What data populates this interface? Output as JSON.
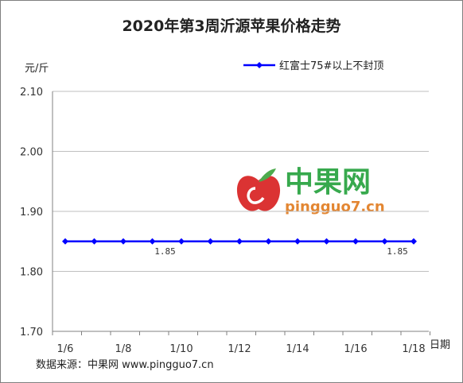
{
  "chart_data": {
    "type": "line",
    "title": "2020年第3周沂源苹果价格走势",
    "ylabel": "元/斤",
    "xlabel": "日期",
    "ylim": [
      1.7,
      2.1
    ],
    "yticks": [
      "1.70",
      "1.80",
      "1.90",
      "2.00",
      "2.10"
    ],
    "x_tick_labels": [
      "1/6",
      "1/8",
      "1/10",
      "1/12",
      "1/14",
      "1/16",
      "1/18"
    ],
    "legend_position": "top-right",
    "grid": "horizontal",
    "series": [
      {
        "name": "红富士75#以上不封顶",
        "color": "#0000ff",
        "values": [
          1.85,
          1.85,
          1.85,
          1.85,
          1.85,
          1.85,
          1.85,
          1.85,
          1.85,
          1.85,
          1.85,
          1.85,
          1.85
        ],
        "data_labels": [
          {
            "index": 3,
            "text": "1.85"
          },
          {
            "index": 11,
            "text": "1.85"
          }
        ]
      }
    ]
  },
  "source_note": "数据来源：中果网 www.pingguo7.cn",
  "watermark": {
    "brand": "中果网",
    "url": "pingguo7.cn",
    "colors": {
      "apple": "#d81e1e",
      "leaf": "#3aa33a",
      "brand_text": "#22a03a",
      "url_text": "#e07a1c"
    }
  }
}
